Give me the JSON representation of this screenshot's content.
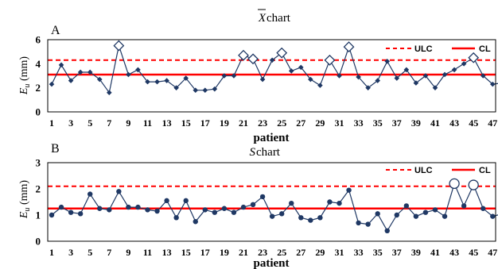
{
  "colors": {
    "series": "#1f3864",
    "limit": "#ff0000",
    "frame": "#000000",
    "text": "#000000"
  },
  "chart_data": [
    {
      "panel_letter": "A",
      "title_symbol": "X",
      "title_word": " chart",
      "type": "line",
      "xlabel": "patient",
      "ylabel_main": "E",
      "ylabel_sub": "u",
      "ylabel_unit": " (mm)",
      "ylim": [
        0,
        6
      ],
      "yticks": [
        0,
        2,
        4,
        6
      ],
      "xticks": [
        1,
        3,
        5,
        7,
        9,
        11,
        13,
        15,
        17,
        19,
        21,
        23,
        25,
        27,
        29,
        31,
        33,
        35,
        37,
        39,
        41,
        43,
        45,
        47
      ],
      "legend": {
        "ulc": "ULC",
        "cl": "CL",
        "placement": "top-right"
      },
      "ulc": 4.3,
      "cl": 3.1,
      "marker": "diamond",
      "out_of_control_marker": "large-open-diamond",
      "x": [
        1,
        2,
        3,
        4,
        5,
        6,
        7,
        8,
        9,
        10,
        11,
        12,
        13,
        14,
        15,
        16,
        17,
        18,
        19,
        20,
        21,
        22,
        23,
        24,
        25,
        26,
        27,
        28,
        29,
        30,
        31,
        32,
        33,
        34,
        35,
        36,
        37,
        38,
        39,
        40,
        41,
        42,
        43,
        44,
        45,
        46,
        47,
        48
      ],
      "values": [
        2.3,
        3.9,
        2.6,
        3.3,
        3.3,
        2.7,
        1.6,
        5.5,
        3.1,
        3.5,
        2.5,
        2.5,
        2.6,
        2.0,
        2.8,
        1.8,
        1.8,
        1.9,
        3.0,
        3.0,
        4.7,
        4.4,
        2.7,
        4.3,
        4.9,
        3.4,
        3.7,
        2.7,
        2.2,
        4.3,
        3.0,
        5.4,
        2.9,
        2.0,
        2.6,
        4.2,
        2.8,
        3.5,
        2.4,
        3.0,
        2.0,
        3.1,
        3.5,
        4.0,
        4.5,
        3.0,
        2.3,
        2.4
      ],
      "out_of_control": [
        8,
        21,
        22,
        25,
        30,
        32,
        45
      ]
    },
    {
      "panel_letter": "B",
      "title_symbol": "S",
      "title_word": " chart",
      "type": "line",
      "xlabel": "patient",
      "ylabel_main": "E",
      "ylabel_sub": "u",
      "ylabel_unit": " (mm)",
      "ylim": [
        0,
        3
      ],
      "yticks": [
        0,
        1,
        2,
        3
      ],
      "xticks": [
        1,
        3,
        5,
        7,
        9,
        11,
        13,
        15,
        17,
        19,
        21,
        23,
        25,
        27,
        29,
        31,
        33,
        35,
        37,
        39,
        41,
        43,
        45,
        47
      ],
      "legend": {
        "ulc": "ULC",
        "cl": "CL",
        "placement": "top-right"
      },
      "ulc": 2.1,
      "cl": 1.25,
      "marker": "circle",
      "out_of_control_marker": "large-open-circle",
      "x": [
        1,
        2,
        3,
        4,
        5,
        6,
        7,
        8,
        9,
        10,
        11,
        12,
        13,
        14,
        15,
        16,
        17,
        18,
        19,
        20,
        21,
        22,
        23,
        24,
        25,
        26,
        27,
        28,
        29,
        30,
        31,
        32,
        33,
        34,
        35,
        36,
        37,
        38,
        39,
        40,
        41,
        42,
        43,
        44,
        45,
        46,
        47,
        48
      ],
      "values": [
        1.0,
        1.3,
        1.1,
        1.05,
        1.8,
        1.25,
        1.2,
        1.9,
        1.3,
        1.3,
        1.2,
        1.15,
        1.55,
        0.9,
        1.55,
        0.75,
        1.2,
        1.1,
        1.25,
        1.1,
        1.3,
        1.4,
        1.7,
        0.95,
        1.05,
        1.45,
        0.9,
        0.8,
        0.9,
        1.5,
        1.45,
        1.95,
        0.7,
        0.65,
        1.05,
        0.4,
        1.0,
        1.35,
        0.95,
        1.1,
        1.2,
        0.95,
        2.2,
        1.35,
        2.15,
        1.25,
        0.95,
        1.05
      ],
      "out_of_control": [
        43,
        45
      ]
    }
  ]
}
